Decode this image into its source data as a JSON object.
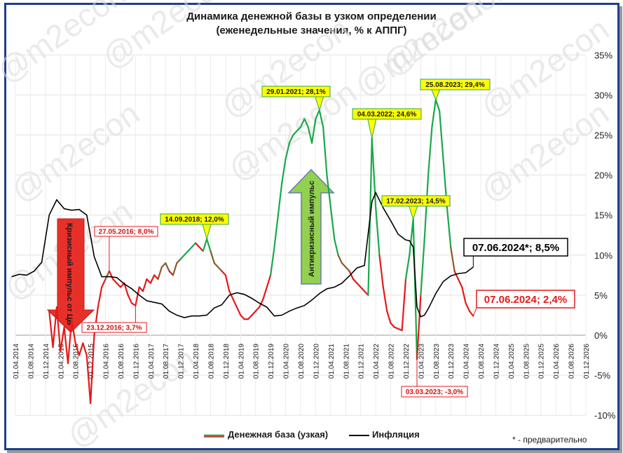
{
  "chart_data": {
    "type": "line",
    "title": "Динамика денежной базы в узком определении",
    "subtitle": "(еженедельные значения, % к АППГ)",
    "ylim": [
      -10,
      35
    ],
    "y_ticks": [
      "-10%",
      "-5%",
      "0%",
      "5%",
      "10%",
      "15%",
      "20%",
      "25%",
      "30%",
      "35%"
    ],
    "x_ticks": [
      "01.04.2014",
      "01.08.2014",
      "01.12.2014",
      "01.04.2015",
      "01.08.2015",
      "01.12.2015",
      "01.04.2016",
      "01.08.2016",
      "01.12.2016",
      "01.04.2017",
      "01.08.2017",
      "01.12.2017",
      "01.04.2018",
      "01.08.2018",
      "01.12.2018",
      "01.04.2019",
      "01.08.2019",
      "01.12.2019",
      "01.04.2020",
      "01.08.2020",
      "01.12.2020",
      "01.04.2021",
      "01.08.2021",
      "01.12.2021",
      "01.04.2022",
      "01.08.2022",
      "01.12.2022",
      "01.04.2023",
      "01.08.2023",
      "01.12.2023",
      "01.04.2024",
      "01.08.2024",
      "01.12.2024",
      "01.04.2025",
      "01.08.2025",
      "01.12.2025",
      "01.04.2026",
      "01.08.2026",
      "01.12.2026"
    ],
    "grid": true,
    "series": [
      {
        "name": "Денежная база (узкая)",
        "colors": {
          "rising_high": "#1aa84a",
          "falling": "#e41a1a",
          "transition": "#8a5a2b"
        },
        "points": [
          [
            "2015-01",
            3.0
          ],
          [
            "2015-02",
            -1.5
          ],
          [
            "2015-03",
            3.5
          ],
          [
            "2015-04",
            -2.0
          ],
          [
            "2015-05",
            1.0
          ],
          [
            "2015-06",
            -3.5
          ],
          [
            "2015-07",
            2.0
          ],
          [
            "2015-08",
            -1.0
          ],
          [
            "2015-09",
            -2.5
          ],
          [
            "2015-10",
            -1.0
          ],
          [
            "2015-11",
            -2.5
          ],
          [
            "2015-12",
            -8.5
          ],
          [
            "2016-01",
            0.0
          ],
          [
            "2016-02",
            3.5
          ],
          [
            "2016-03",
            6.0
          ],
          [
            "2016-04",
            7.0
          ],
          [
            "2016-05",
            8.0
          ],
          [
            "2016-06",
            7.0
          ],
          [
            "2016-07",
            6.5
          ],
          [
            "2016-08",
            6.0
          ],
          [
            "2016-09",
            6.5
          ],
          [
            "2016-10",
            5.0
          ],
          [
            "2016-11",
            4.0
          ],
          [
            "2016-12",
            3.7
          ],
          [
            "2017-01",
            6.0
          ],
          [
            "2017-02",
            5.5
          ],
          [
            "2017-03",
            7.0
          ],
          [
            "2017-04",
            6.5
          ],
          [
            "2017-05",
            7.5
          ],
          [
            "2017-06",
            7.0
          ],
          [
            "2017-07",
            8.5
          ],
          [
            "2017-08",
            9.0
          ],
          [
            "2017-09",
            8.0
          ],
          [
            "2017-10",
            7.5
          ],
          [
            "2017-11",
            9.0
          ],
          [
            "2017-12",
            9.5
          ],
          [
            "2018-01",
            10.0
          ],
          [
            "2018-02",
            10.5
          ],
          [
            "2018-03",
            11.0
          ],
          [
            "2018-04",
            11.5
          ],
          [
            "2018-05",
            11.0
          ],
          [
            "2018-06",
            10.5
          ],
          [
            "2018-07",
            12.0
          ],
          [
            "2018-08",
            10.5
          ],
          [
            "2018-09",
            9.0
          ],
          [
            "2018-10",
            8.5
          ],
          [
            "2018-11",
            8.0
          ],
          [
            "2018-12",
            7.5
          ],
          [
            "2019-01",
            5.5
          ],
          [
            "2019-02",
            4.5
          ],
          [
            "2019-03",
            3.5
          ],
          [
            "2019-04",
            2.5
          ],
          [
            "2019-05",
            2.0
          ],
          [
            "2019-06",
            2.0
          ],
          [
            "2019-07",
            2.5
          ],
          [
            "2019-08",
            3.0
          ],
          [
            "2019-09",
            3.5
          ],
          [
            "2019-10",
            4.5
          ],
          [
            "2019-11",
            6.0
          ],
          [
            "2019-12",
            7.5
          ],
          [
            "2020-01",
            11.0
          ],
          [
            "2020-02",
            15.0
          ],
          [
            "2020-03",
            19.0
          ],
          [
            "2020-04",
            22.0
          ],
          [
            "2020-05",
            24.0
          ],
          [
            "2020-06",
            25.0
          ],
          [
            "2020-07",
            25.5
          ],
          [
            "2020-08",
            26.0
          ],
          [
            "2020-09",
            27.0
          ],
          [
            "2020-10",
            26.0
          ],
          [
            "2020-11",
            24.0
          ],
          [
            "2020-12",
            27.0
          ],
          [
            "2021-01",
            28.1
          ],
          [
            "2021-02",
            26.0
          ],
          [
            "2021-03",
            20.0
          ],
          [
            "2021-04",
            16.0
          ],
          [
            "2021-05",
            12.0
          ],
          [
            "2021-06",
            10.0
          ],
          [
            "2021-07",
            9.0
          ],
          [
            "2021-08",
            8.5
          ],
          [
            "2021-09",
            8.0
          ],
          [
            "2021-10",
            7.0
          ],
          [
            "2021-11",
            6.5
          ],
          [
            "2021-12",
            6.0
          ],
          [
            "2022-01",
            5.5
          ],
          [
            "2022-02",
            5.0
          ],
          [
            "2022-03",
            24.6
          ],
          [
            "2022-04",
            16.0
          ],
          [
            "2022-05",
            10.0
          ],
          [
            "2022-06",
            6.0
          ],
          [
            "2022-07",
            3.0
          ],
          [
            "2022-08",
            1.5
          ],
          [
            "2022-09",
            1.0
          ],
          [
            "2022-10",
            0.8
          ],
          [
            "2022-11",
            0.6
          ],
          [
            "2022-12",
            7.0
          ],
          [
            "2023-01",
            10.0
          ],
          [
            "2023-02",
            14.5
          ],
          [
            "2023-03",
            -3.0
          ],
          [
            "2023-04",
            5.0
          ],
          [
            "2023-05",
            12.0
          ],
          [
            "2023-06",
            20.0
          ],
          [
            "2023-07",
            26.0
          ],
          [
            "2023-08",
            29.4
          ],
          [
            "2023-09",
            28.0
          ],
          [
            "2023-10",
            22.0
          ],
          [
            "2023-11",
            16.0
          ],
          [
            "2023-12",
            11.0
          ],
          [
            "2024-01",
            8.0
          ],
          [
            "2024-02",
            7.0
          ],
          [
            "2024-03",
            6.0
          ],
          [
            "2024-04",
            4.0
          ],
          [
            "2024-05",
            3.0
          ],
          [
            "2024-06",
            2.4
          ]
        ]
      },
      {
        "name": "Инфляция",
        "color": "#000000",
        "points": [
          [
            "2014-03",
            7.3
          ],
          [
            "2014-05",
            7.6
          ],
          [
            "2014-07",
            7.5
          ],
          [
            "2014-09",
            8.0
          ],
          [
            "2014-11",
            9.1
          ],
          [
            "2015-01",
            15.0
          ],
          [
            "2015-03",
            16.9
          ],
          [
            "2015-05",
            15.8
          ],
          [
            "2015-07",
            15.6
          ],
          [
            "2015-09",
            15.7
          ],
          [
            "2015-11",
            15.0
          ],
          [
            "2016-01",
            9.8
          ],
          [
            "2016-03",
            7.3
          ],
          [
            "2016-05",
            7.3
          ],
          [
            "2016-07",
            7.2
          ],
          [
            "2016-09",
            6.4
          ],
          [
            "2016-11",
            5.8
          ],
          [
            "2017-01",
            5.0
          ],
          [
            "2017-03",
            4.3
          ],
          [
            "2017-05",
            4.1
          ],
          [
            "2017-07",
            3.9
          ],
          [
            "2017-09",
            3.0
          ],
          [
            "2017-11",
            2.5
          ],
          [
            "2018-01",
            2.2
          ],
          [
            "2018-03",
            2.4
          ],
          [
            "2018-05",
            2.4
          ],
          [
            "2018-07",
            2.5
          ],
          [
            "2018-09",
            3.4
          ],
          [
            "2018-11",
            3.8
          ],
          [
            "2019-01",
            5.0
          ],
          [
            "2019-03",
            5.3
          ],
          [
            "2019-05",
            5.1
          ],
          [
            "2019-07",
            4.6
          ],
          [
            "2019-09",
            4.0
          ],
          [
            "2019-11",
            3.5
          ],
          [
            "2020-01",
            2.4
          ],
          [
            "2020-03",
            2.5
          ],
          [
            "2020-05",
            3.0
          ],
          [
            "2020-07",
            3.4
          ],
          [
            "2020-09",
            3.7
          ],
          [
            "2020-11",
            4.4
          ],
          [
            "2021-01",
            5.2
          ],
          [
            "2021-03",
            5.8
          ],
          [
            "2021-05",
            6.0
          ],
          [
            "2021-07",
            6.5
          ],
          [
            "2021-09",
            7.4
          ],
          [
            "2021-11",
            8.4
          ],
          [
            "2022-01",
            8.7
          ],
          [
            "2022-03",
            16.7
          ],
          [
            "2022-04",
            17.8
          ],
          [
            "2022-06",
            15.9
          ],
          [
            "2022-08",
            14.3
          ],
          [
            "2022-10",
            12.6
          ],
          [
            "2022-12",
            11.9
          ],
          [
            "2023-01",
            11.8
          ],
          [
            "2023-02",
            11.0
          ],
          [
            "2023-03",
            3.5
          ],
          [
            "2023-04",
            2.3
          ],
          [
            "2023-05",
            2.5
          ],
          [
            "2023-06",
            3.3
          ],
          [
            "2023-08",
            5.2
          ],
          [
            "2023-10",
            6.7
          ],
          [
            "2023-12",
            7.4
          ],
          [
            "2024-02",
            7.7
          ],
          [
            "2024-04",
            7.8
          ],
          [
            "2024-06",
            8.5
          ]
        ]
      }
    ],
    "callouts": [
      {
        "text": "27.05.2016; 8,0%",
        "style": "red",
        "date": "2016-05",
        "value": 8.0
      },
      {
        "text": "23.12.2016; 3,7%",
        "style": "red",
        "date": "2016-12",
        "value": 3.7
      },
      {
        "text": "14.09.2018; 12,0%",
        "style": "yellow",
        "date": "2018-07",
        "value": 12.0
      },
      {
        "text": "29.01.2021; 28,1%",
        "style": "yellow",
        "date": "2021-01",
        "value": 28.1
      },
      {
        "text": "04.03.2022; 24,6%",
        "style": "yellow",
        "date": "2022-03",
        "value": 24.6
      },
      {
        "text": "17.02.2023; 14,5%",
        "style": "yellow",
        "date": "2023-02",
        "value": 14.5
      },
      {
        "text": "25.08.2023; 29,4%",
        "style": "yellow",
        "date": "2023-08",
        "value": 29.4
      },
      {
        "text": "03.03.2023; -3,0%",
        "style": "red",
        "date": "2023-03",
        "value": -3.0
      },
      {
        "text": "07.06.2024*; 8,5%",
        "style": "black-big",
        "date": "2024-06",
        "value": 8.5
      },
      {
        "text": "07.06.2024; 2,4%",
        "style": "red-big",
        "date": "2024-06",
        "value": 2.4
      }
    ],
    "arrows": [
      {
        "text": "Кризисный импульс от ЦБ",
        "direction": "down",
        "color": "#e8302a"
      },
      {
        "text": "Антикризисный импульс",
        "direction": "up",
        "color": "#92d050"
      }
    ],
    "watermark": "@m2econ",
    "legend_position": "bottom",
    "note": "* - предварительно"
  }
}
